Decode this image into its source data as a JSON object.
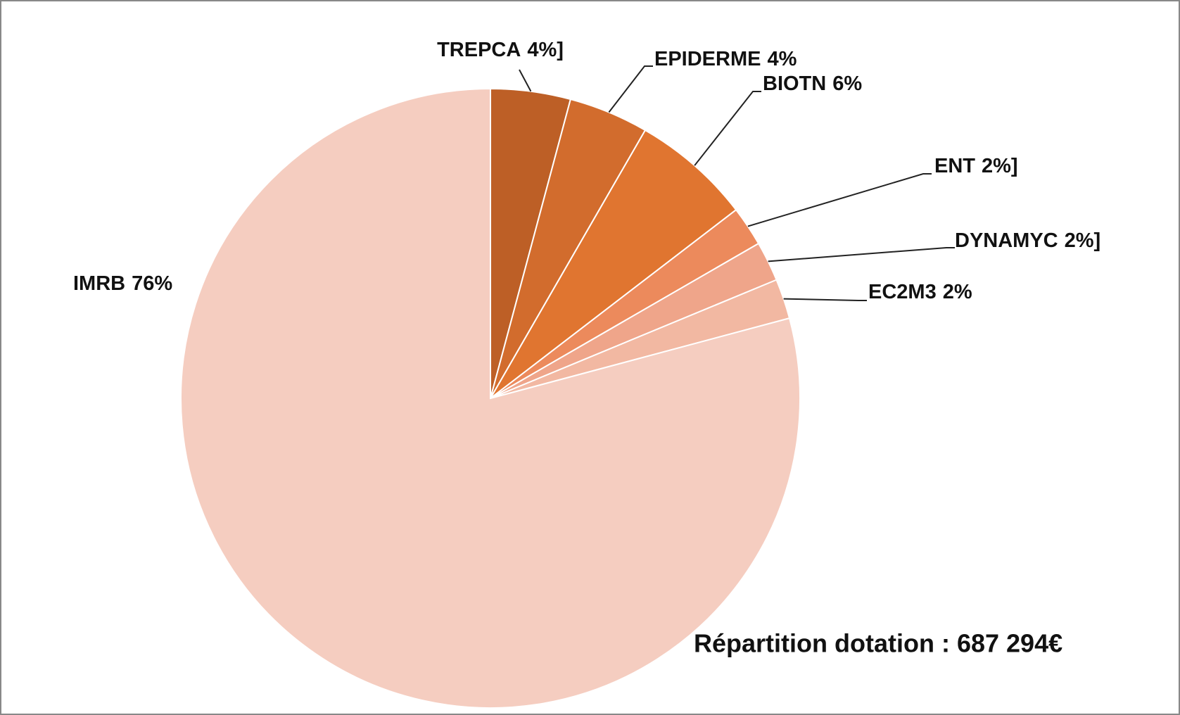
{
  "chart_data": {
    "type": "pie",
    "annotation": "Répartition dotation :  687 294€",
    "categories": [
      "TREPCA",
      "EPIDERME",
      "BIOTN",
      "ENT",
      "DYNAMYC",
      "EC2M3",
      "IMRB"
    ],
    "values": [
      4,
      4,
      6,
      2,
      2,
      2,
      76
    ],
    "value_labels": [
      "4%]",
      "4%",
      "6%",
      "2%]",
      "2%]",
      "2%",
      "76%"
    ],
    "colors": [
      "#bd5f26",
      "#d26c2d",
      "#e07530",
      "#ec8a5c",
      "#efa58a",
      "#f2b8a2",
      "#f5cdc0"
    ]
  }
}
